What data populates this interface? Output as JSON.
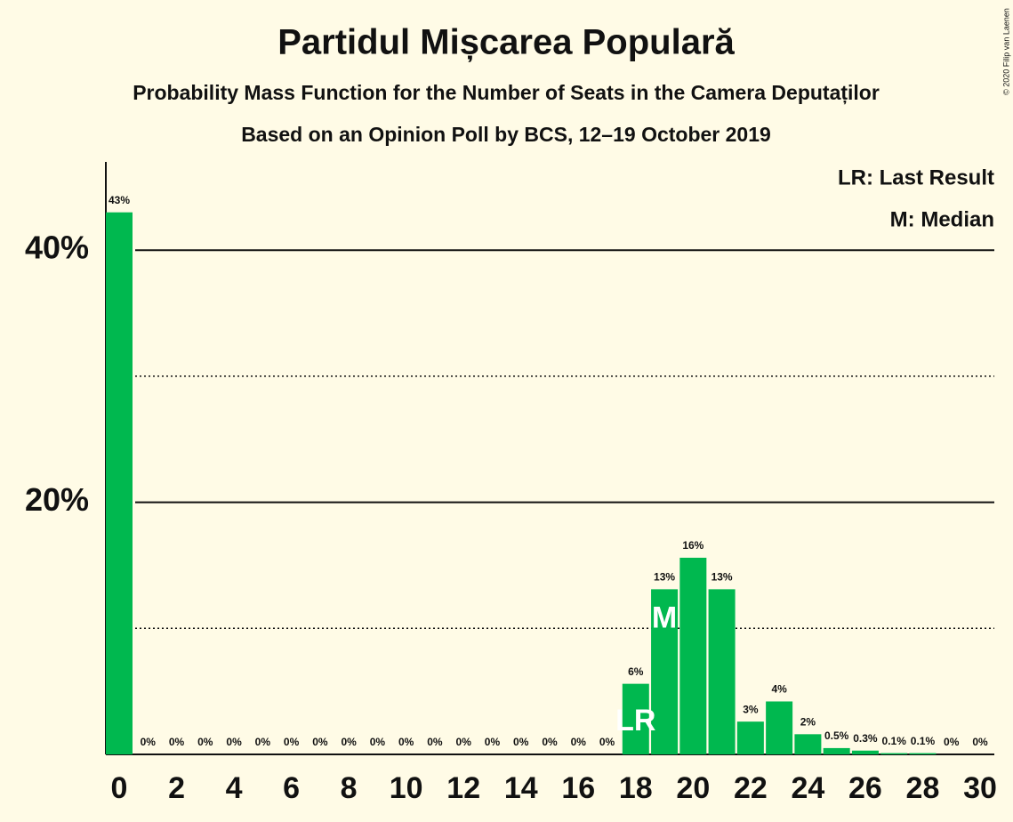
{
  "chart_data": {
    "type": "bar",
    "title": "Partidul Mișcarea Populară",
    "subtitle": "Probability Mass Function for the Number of Seats in the Camera Deputaților",
    "subtitle2": "Based on an Opinion Poll by BCS, 12–19 October 2019",
    "credit": "© 2020 Filip van Laenen",
    "legend_notes": [
      "LR: Last Result",
      "M: Median"
    ],
    "x": [
      0,
      1,
      2,
      3,
      4,
      5,
      6,
      7,
      8,
      9,
      10,
      11,
      12,
      13,
      14,
      15,
      16,
      17,
      18,
      19,
      20,
      21,
      22,
      23,
      24,
      25,
      26,
      27,
      28,
      29,
      30
    ],
    "values": [
      43,
      0,
      0,
      0,
      0,
      0,
      0,
      0,
      0,
      0,
      0,
      0,
      0,
      0,
      0,
      0,
      0,
      0,
      5.6,
      13.1,
      15.6,
      13.1,
      2.6,
      4.2,
      1.6,
      0.5,
      0.3,
      0.1,
      0.1,
      0,
      0
    ],
    "value_labels": [
      "43%",
      "0%",
      "0%",
      "0%",
      "0%",
      "0%",
      "0%",
      "0%",
      "0%",
      "0%",
      "0%",
      "0%",
      "0%",
      "0%",
      "0%",
      "0%",
      "0%",
      "0%",
      "6%",
      "13%",
      "16%",
      "13%",
      "3%",
      "4%",
      "2%",
      "0.5%",
      "0.3%",
      "0.1%",
      "0.1%",
      "0%",
      "0%"
    ],
    "color": "#00b84f",
    "xlim": [
      -0.5,
      30.5
    ],
    "xticks": [
      0,
      2,
      4,
      6,
      8,
      10,
      12,
      14,
      16,
      18,
      20,
      22,
      24,
      26,
      28,
      30
    ],
    "ylim": [
      0,
      47
    ],
    "yticks": [
      {
        "value": 20,
        "label": "20%"
      },
      {
        "value": 40,
        "label": "40%"
      }
    ],
    "y_minor_ticks": [
      10,
      30
    ],
    "annotations": [
      {
        "x": 18,
        "label": "LR"
      },
      {
        "x": 19,
        "label": "M"
      }
    ]
  }
}
